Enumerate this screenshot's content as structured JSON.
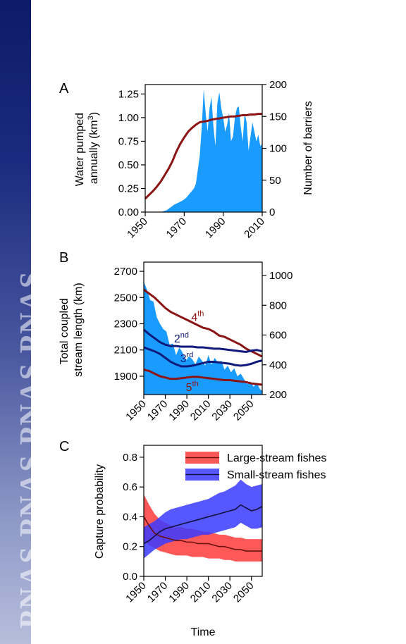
{
  "banner": {
    "text": "PNAS  PNAS  PNAS  PNAS"
  },
  "colors": {
    "blue_fill": "#1a9bff",
    "dark_red": "#8b1414",
    "navy": "#101a7a",
    "red_band": "#ff3b3b",
    "blue_band": "#3a3aff",
    "banner_top": "#0e1a6a"
  },
  "chart_data": [
    {
      "panel": "A",
      "type": "area",
      "title": "",
      "xlabel": "",
      "ylabel": "Water pumped annually (km3)",
      "ylabel_lines": [
        "Water pumped",
        "annually (km",
        "3",
        ")"
      ],
      "y2label": "Number of barriers",
      "xlim": [
        1950,
        2010
      ],
      "ylim": [
        0,
        1.35
      ],
      "y2lim": [
        0,
        200
      ],
      "xticks": [
        "1950",
        "1970",
        "1990",
        "2010"
      ],
      "yticks": [
        "0.00",
        "0.25",
        "0.50",
        "0.75",
        "1.00",
        "1.25"
      ],
      "y2ticks": [
        "0",
        "50",
        "100",
        "150",
        "200"
      ],
      "series": [
        {
          "kind": "area",
          "axis": "left",
          "color": "#1a9bff",
          "x": [
            1950,
            1958,
            1961,
            1963,
            1965,
            1967,
            1969,
            1971,
            1973,
            1975,
            1976,
            1977,
            1978,
            1979,
            1980,
            1981,
            1982,
            1983,
            1984,
            1985,
            1986,
            1987,
            1988,
            1989,
            1990,
            1991,
            1992,
            1993,
            1994,
            1995,
            1996,
            1997,
            1998,
            1999,
            2000,
            2001,
            2002,
            2003,
            2004,
            2005,
            2006,
            2007,
            2008,
            2009,
            2010
          ],
          "values": [
            0,
            0,
            0.02,
            0.05,
            0.08,
            0.1,
            0.12,
            0.15,
            0.2,
            0.25,
            0.3,
            0.45,
            0.6,
            0.9,
            1.3,
            1.05,
            0.85,
            1.1,
            1.22,
            0.9,
            0.7,
            1.15,
            1.27,
            1.1,
            1.0,
            0.85,
            0.92,
            1.05,
            0.75,
            0.8,
            1.0,
            1.1,
            1.12,
            0.9,
            0.75,
            1.05,
            0.95,
            0.65,
            0.8,
            0.95,
            0.85,
            0.75,
            0.82,
            0.7,
            0.72
          ]
        },
        {
          "kind": "line",
          "axis": "right",
          "color": "#8b1414",
          "x": [
            1950,
            1952,
            1954,
            1956,
            1958,
            1960,
            1962,
            1964,
            1966,
            1968,
            1970,
            1972,
            1974,
            1976,
            1978,
            1980,
            1982,
            1984,
            1986,
            1988,
            1990,
            1992,
            1994,
            1996,
            1998,
            2000,
            2002,
            2004,
            2006,
            2008,
            2010
          ],
          "values": [
            21,
            27,
            33,
            40,
            48,
            58,
            68,
            80,
            95,
            107,
            117,
            126,
            132,
            137,
            141,
            142,
            143,
            145,
            146,
            147,
            148,
            149,
            150,
            150,
            151,
            152,
            152,
            153,
            153,
            154,
            154
          ]
        }
      ]
    },
    {
      "panel": "B",
      "type": "line",
      "title": "",
      "xlabel": "",
      "ylabel": "Total coupled stream length (km)",
      "ylabel_lines": [
        "Total coupled",
        "stream length (km)"
      ],
      "xlim": [
        1950,
        2060
      ],
      "ylim": [
        1760,
        2770
      ],
      "y2lim": [
        200,
        1090
      ],
      "xticks": [
        "1950",
        "1970",
        "1990",
        "2010",
        "2030",
        "2050"
      ],
      "yticks": [
        "1900",
        "2100",
        "2300",
        "2500",
        "2700"
      ],
      "y2ticks": [
        "200",
        "400",
        "600",
        "800",
        "1000"
      ],
      "series": [
        {
          "kind": "area",
          "axis": "left",
          "color": "#1a9bff",
          "x": [
            1950,
            1953,
            1956,
            1959,
            1962,
            1965,
            1968,
            1971,
            1974,
            1977,
            1980,
            1983,
            1986,
            1989,
            1992,
            1995,
            1998,
            2001,
            2004,
            2007,
            2010,
            2013,
            2016,
            2019,
            2022,
            2025,
            2028,
            2031,
            2034,
            2037,
            2040,
            2043,
            2046,
            2049,
            2052,
            2055,
            2058,
            2060
          ],
          "values": [
            2620,
            2560,
            2480,
            2470,
            2350,
            2300,
            2260,
            2240,
            2140,
            2150,
            2060,
            2120,
            2080,
            2020,
            2050,
            2030,
            1990,
            2050,
            2020,
            1980,
            2060,
            1990,
            2040,
            2000,
            2020,
            1950,
            1980,
            1930,
            1960,
            1900,
            1920,
            1880,
            1840,
            1860,
            1820,
            1850,
            1800,
            1790
          ]
        },
        {
          "name": "4th",
          "label_main": "4",
          "label_sup": "th",
          "label_at": 1998,
          "kind": "line",
          "axis": "left",
          "color": "#8b1414",
          "x": [
            1950,
            1955,
            1960,
            1965,
            1970,
            1975,
            1980,
            1985,
            1990,
            1995,
            2000,
            2005,
            2010,
            2015,
            2020,
            2025,
            2030,
            2035,
            2040,
            2045,
            2050,
            2055,
            2060
          ],
          "values": [
            2560,
            2530,
            2500,
            2460,
            2420,
            2390,
            2370,
            2350,
            2330,
            2310,
            2290,
            2270,
            2260,
            2240,
            2210,
            2200,
            2180,
            2160,
            2140,
            2110,
            2090,
            2070,
            2050
          ]
        },
        {
          "name": "2nd",
          "label_main": "2",
          "label_sup": "nd",
          "label_at": 1985,
          "kind": "line",
          "axis": "left",
          "color": "#101a7a",
          "x": [
            1950,
            1955,
            1960,
            1965,
            1970,
            1975,
            1980,
            1985,
            1990,
            1995,
            2000,
            2005,
            2010,
            2015,
            2020,
            2025,
            2030,
            2035,
            2040,
            2045,
            2050,
            2055,
            2060
          ],
          "values": [
            2255,
            2220,
            2190,
            2160,
            2140,
            2130,
            2130,
            2125,
            2125,
            2125,
            2120,
            2120,
            2115,
            2110,
            2110,
            2105,
            2100,
            2095,
            2090,
            2085,
            2095,
            2100,
            2090
          ]
        },
        {
          "name": "3rd",
          "label_main": "3",
          "label_sup": "rd",
          "label_at": 1988,
          "kind": "line",
          "axis": "left",
          "color": "#101a7a",
          "x": [
            1950,
            1955,
            1960,
            1965,
            1970,
            1975,
            1980,
            1985,
            1990,
            1995,
            2000,
            2005,
            2010,
            2015,
            2020,
            2025,
            2030,
            2035,
            2040,
            2045,
            2050,
            2055,
            2060
          ],
          "values": [
            2120,
            2105,
            2090,
            2070,
            2040,
            2010,
            1990,
            1975,
            1975,
            1980,
            1990,
            2000,
            2010,
            2010,
            2005,
            2000,
            1995,
            1985,
            1980,
            1985,
            1995,
            2010,
            2020
          ]
        },
        {
          "name": "5th",
          "label_main": "5",
          "label_sup": "th",
          "label_at": 1996,
          "kind": "line",
          "axis": "left",
          "color": "#8b1414",
          "x": [
            1950,
            1955,
            1960,
            1965,
            1970,
            1975,
            1980,
            1985,
            1990,
            1995,
            2000,
            2005,
            2010,
            2015,
            2020,
            2025,
            2030,
            2035,
            2040,
            2045,
            2050,
            2055,
            2060
          ],
          "values": [
            1950,
            1940,
            1920,
            1900,
            1890,
            1880,
            1880,
            1885,
            1890,
            1895,
            1895,
            1890,
            1885,
            1880,
            1875,
            1870,
            1870,
            1865,
            1860,
            1855,
            1845,
            1840,
            1835
          ]
        }
      ]
    },
    {
      "panel": "C",
      "type": "area",
      "title": "",
      "xlabel": "Time",
      "ylabel": "Capture probability",
      "xlim": [
        1950,
        2060
      ],
      "ylim": [
        0,
        0.88
      ],
      "xticks": [
        "1950",
        "1970",
        "1990",
        "2010",
        "2030",
        "2050"
      ],
      "yticks": [
        "0.0",
        "0.2",
        "0.4",
        "0.6",
        "0.8"
      ],
      "legend_position": "top-right",
      "series": [
        {
          "name": "Large-stream fishes",
          "color": "#ff3b3b",
          "line_color": "#6b1010",
          "x": [
            1950,
            1955,
            1960,
            1965,
            1970,
            1975,
            1980,
            1985,
            1990,
            1995,
            2000,
            2005,
            2010,
            2015,
            2020,
            2025,
            2030,
            2035,
            2040,
            2045,
            2050,
            2055,
            2060
          ],
          "mean": [
            0.4,
            0.34,
            0.29,
            0.27,
            0.26,
            0.25,
            0.24,
            0.24,
            0.23,
            0.23,
            0.22,
            0.22,
            0.22,
            0.21,
            0.2,
            0.2,
            0.19,
            0.18,
            0.18,
            0.17,
            0.17,
            0.17,
            0.17
          ],
          "lower": [
            0.24,
            0.21,
            0.19,
            0.17,
            0.16,
            0.15,
            0.14,
            0.14,
            0.14,
            0.13,
            0.13,
            0.13,
            0.12,
            0.12,
            0.12,
            0.11,
            0.11,
            0.1,
            0.1,
            0.1,
            0.1,
            0.1,
            0.1
          ],
          "upper": [
            0.55,
            0.48,
            0.42,
            0.38,
            0.36,
            0.34,
            0.33,
            0.33,
            0.32,
            0.32,
            0.31,
            0.3,
            0.3,
            0.29,
            0.28,
            0.28,
            0.27,
            0.26,
            0.26,
            0.25,
            0.25,
            0.25,
            0.25
          ]
        },
        {
          "name": "Small-stream fishes",
          "color": "#3a3aff",
          "line_color": "#101040",
          "x": [
            1950,
            1955,
            1960,
            1965,
            1970,
            1975,
            1980,
            1985,
            1990,
            1995,
            2000,
            2005,
            2010,
            2015,
            2020,
            2025,
            2030,
            2035,
            2040,
            2045,
            2050,
            2055,
            2060
          ],
          "mean": [
            0.22,
            0.24,
            0.27,
            0.3,
            0.32,
            0.33,
            0.34,
            0.35,
            0.36,
            0.37,
            0.38,
            0.39,
            0.4,
            0.41,
            0.42,
            0.43,
            0.44,
            0.45,
            0.48,
            0.46,
            0.44,
            0.45,
            0.47
          ],
          "lower": [
            0.12,
            0.15,
            0.18,
            0.2,
            0.22,
            0.23,
            0.24,
            0.25,
            0.25,
            0.26,
            0.27,
            0.28,
            0.28,
            0.29,
            0.3,
            0.31,
            0.32,
            0.33,
            0.36,
            0.34,
            0.32,
            0.32,
            0.33
          ],
          "upper": [
            0.33,
            0.35,
            0.37,
            0.4,
            0.43,
            0.45,
            0.46,
            0.47,
            0.48,
            0.49,
            0.5,
            0.51,
            0.52,
            0.54,
            0.56,
            0.57,
            0.59,
            0.61,
            0.65,
            0.62,
            0.6,
            0.61,
            0.62
          ]
        }
      ]
    }
  ]
}
